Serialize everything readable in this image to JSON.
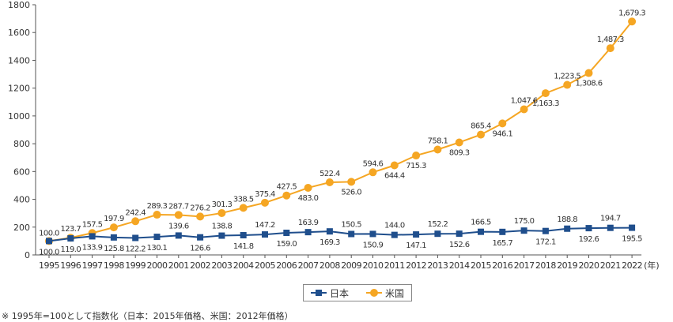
{
  "chart_data": {
    "type": "line",
    "title": "",
    "xlabel": "",
    "ylabel": "",
    "x_unit": "(年)",
    "ylim": [
      0,
      1800
    ],
    "yticks": [
      0,
      200,
      400,
      600,
      800,
      1000,
      1200,
      1400,
      1600,
      1800
    ],
    "grid": false,
    "legend_position": "bottom-center",
    "categories": [
      "1995",
      "1996",
      "1997",
      "1998",
      "1999",
      "2000",
      "2001",
      "2002",
      "2003",
      "2004",
      "2005",
      "2006",
      "2007",
      "2008",
      "2009",
      "2010",
      "2011",
      "2012",
      "2013",
      "2014",
      "2015",
      "2016",
      "2017",
      "2018",
      "2019",
      "2020",
      "2021",
      "2022"
    ],
    "series": [
      {
        "name": "日本",
        "color": "#1f4e8c",
        "marker": "square",
        "values": [
          100.0,
          119.0,
          133.9,
          125.8,
          122.2,
          130.1,
          139.6,
          126.6,
          138.8,
          141.8,
          147.2,
          159.0,
          163.9,
          169.3,
          150.5,
          150.9,
          144.0,
          147.1,
          152.2,
          152.6,
          166.5,
          165.7,
          175.0,
          172.1,
          188.8,
          192.6,
          194.7,
          195.5
        ],
        "labels": [
          "100.0",
          "119.0",
          "133.9",
          "125.8",
          "122.2",
          "130.1",
          "139.6",
          "126.6",
          "138.8",
          "141.8",
          "147.2",
          "159.0",
          "163.9",
          "169.3",
          "150.5",
          "150.9",
          "144.0",
          "147.1",
          "152.2",
          "152.6",
          "166.5",
          "165.7",
          "175.0",
          "172.1",
          "188.8",
          "192.6",
          "194.7",
          "195.5"
        ]
      },
      {
        "name": "米国",
        "color": "#f5a623",
        "marker": "circle",
        "values": [
          100.0,
          123.7,
          157.5,
          197.9,
          242.4,
          289.3,
          287.7,
          276.2,
          301.3,
          338.5,
          375.4,
          427.5,
          483.0,
          522.4,
          526.0,
          594.6,
          644.4,
          715.3,
          758.1,
          809.3,
          865.4,
          946.1,
          1047.6,
          1163.3,
          1223.5,
          1308.6,
          1487.3,
          1679.3
        ],
        "labels": [
          "100.0",
          "123.7",
          "157.5",
          "197.9",
          "242.4",
          "289.3",
          "287.7",
          "276.2",
          "301.3",
          "338.5",
          "375.4",
          "427.5",
          "483.0",
          "522.4",
          "526.0",
          "594.6",
          "644.4",
          "715.3",
          "758.1",
          "809.3",
          "865.4",
          "946.1",
          "1,047.6",
          "1,163.3",
          "1,223.5",
          "1,308.6",
          "1,487.3",
          "1,679.3"
        ]
      }
    ],
    "footnote": "※ 1995年=100として指数化（日本：2015年価格、米国：2012年価格）"
  }
}
